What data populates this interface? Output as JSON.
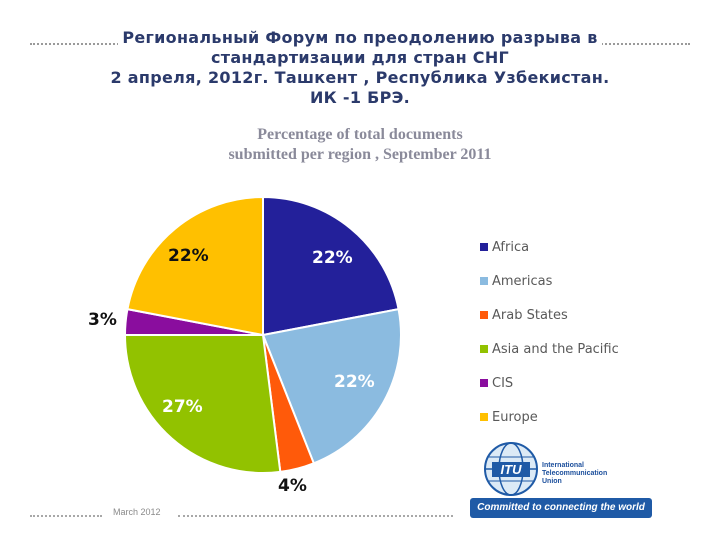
{
  "header": {
    "line1": "Региональный Форум по преодолению разрыва в",
    "line2": "стандартизации для стран СНГ",
    "line3": "2 апреля, 2012г. Ташкент , Республика Узбекистан.",
    "line4": "ИК -1 БРЭ."
  },
  "chart_data": {
    "type": "pie",
    "title": "Percentage of total documents submitted per region , September 2011",
    "title_lines": [
      "Percentage of total documents",
      "submitted per region , September  2011"
    ],
    "categories": [
      "Africa",
      "Americas",
      "Arab States",
      "Asia and the Pacific",
      "CIS",
      "Europe"
    ],
    "values": [
      22,
      22,
      4,
      27,
      3,
      22
    ],
    "labels": [
      "22%",
      "22%",
      "4%",
      "27%",
      "3%",
      "22%"
    ],
    "colors": [
      "#23209a",
      "#8bbbe0",
      "#ff5a0a",
      "#92c200",
      "#8a0d9e",
      "#ffc000"
    ],
    "legend_position": "right"
  },
  "footer": {
    "date": "March 2012",
    "logo_text": [
      "International",
      "Telecommunication",
      "Union"
    ],
    "logo_mark": "ITU",
    "slogan": "Committed to connecting the world"
  }
}
